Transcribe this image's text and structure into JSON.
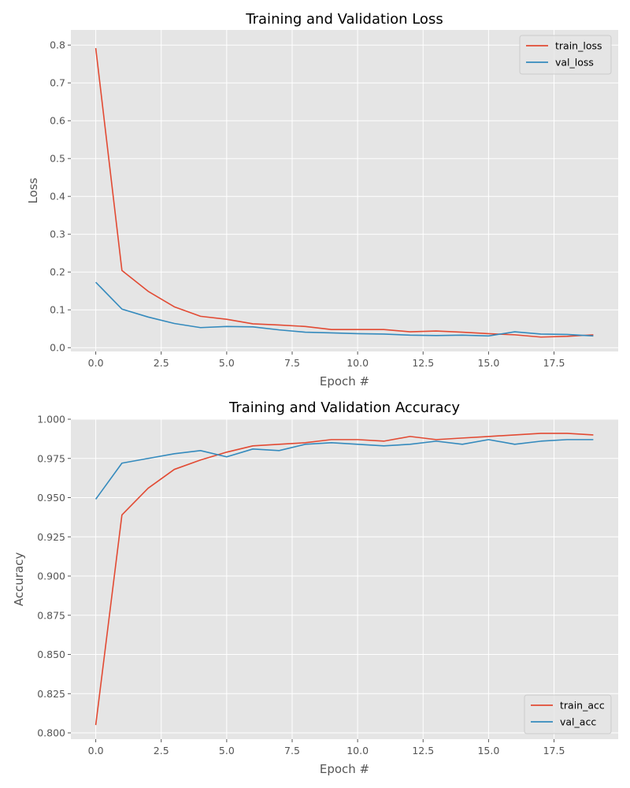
{
  "chart_data": [
    {
      "type": "line",
      "title": "Training and Validation Loss",
      "xlabel": "Epoch #",
      "ylabel": "Loss",
      "xlim": [
        -0.95,
        19.95
      ],
      "ylim": [
        -0.01,
        0.84
      ],
      "xticks": [
        0.0,
        2.5,
        5.0,
        7.5,
        10.0,
        12.5,
        15.0,
        17.5
      ],
      "xtick_labels": [
        "0.0",
        "2.5",
        "5.0",
        "7.5",
        "10.0",
        "12.5",
        "15.0",
        "17.5"
      ],
      "yticks": [
        0.0,
        0.1,
        0.2,
        0.3,
        0.4,
        0.5,
        0.6,
        0.7,
        0.8
      ],
      "ytick_labels": [
        "0.0",
        "0.1",
        "0.2",
        "0.3",
        "0.4",
        "0.5",
        "0.6",
        "0.7",
        "0.8"
      ],
      "grid": true,
      "legend_position": "top-right",
      "x": [
        0,
        1,
        2,
        3,
        4,
        5,
        6,
        7,
        8,
        9,
        10,
        11,
        12,
        13,
        14,
        15,
        16,
        17,
        18,
        19
      ],
      "series": [
        {
          "name": "train_loss",
          "color": "#e24a33",
          "values": [
            0.792,
            0.204,
            0.149,
            0.108,
            0.083,
            0.075,
            0.063,
            0.06,
            0.056,
            0.048,
            0.048,
            0.048,
            0.042,
            0.044,
            0.041,
            0.037,
            0.034,
            0.028,
            0.03,
            0.034
          ]
        },
        {
          "name": "val_loss",
          "color": "#348abd",
          "values": [
            0.173,
            0.102,
            0.081,
            0.064,
            0.053,
            0.056,
            0.055,
            0.047,
            0.041,
            0.039,
            0.037,
            0.036,
            0.033,
            0.032,
            0.033,
            0.031,
            0.042,
            0.036,
            0.035,
            0.031
          ]
        }
      ]
    },
    {
      "type": "line",
      "title": "Training and Validation Accuracy",
      "xlabel": "Epoch #",
      "ylabel": "Accuracy",
      "xlim": [
        -0.95,
        19.95
      ],
      "ylim": [
        0.796,
        1.0
      ],
      "xticks": [
        0.0,
        2.5,
        5.0,
        7.5,
        10.0,
        12.5,
        15.0,
        17.5
      ],
      "xtick_labels": [
        "0.0",
        "2.5",
        "5.0",
        "7.5",
        "10.0",
        "12.5",
        "15.0",
        "17.5"
      ],
      "yticks": [
        0.8,
        0.825,
        0.85,
        0.875,
        0.9,
        0.925,
        0.95,
        0.975,
        1.0
      ],
      "ytick_labels": [
        "0.800",
        "0.825",
        "0.850",
        "0.875",
        "0.900",
        "0.925",
        "0.950",
        "0.975",
        "1.000"
      ],
      "grid": true,
      "legend_position": "bottom-right",
      "x": [
        0,
        1,
        2,
        3,
        4,
        5,
        6,
        7,
        8,
        9,
        10,
        11,
        12,
        13,
        14,
        15,
        16,
        17,
        18,
        19
      ],
      "series": [
        {
          "name": "train_acc",
          "color": "#e24a33",
          "values": [
            0.805,
            0.939,
            0.956,
            0.968,
            0.974,
            0.979,
            0.983,
            0.984,
            0.985,
            0.987,
            0.987,
            0.986,
            0.989,
            0.987,
            0.988,
            0.989,
            0.99,
            0.991,
            0.991,
            0.99
          ]
        },
        {
          "name": "val_acc",
          "color": "#348abd",
          "values": [
            0.949,
            0.972,
            0.975,
            0.978,
            0.98,
            0.976,
            0.981,
            0.98,
            0.984,
            0.985,
            0.984,
            0.983,
            0.984,
            0.986,
            0.984,
            0.987,
            0.984,
            0.986,
            0.987,
            0.987
          ]
        }
      ]
    }
  ]
}
